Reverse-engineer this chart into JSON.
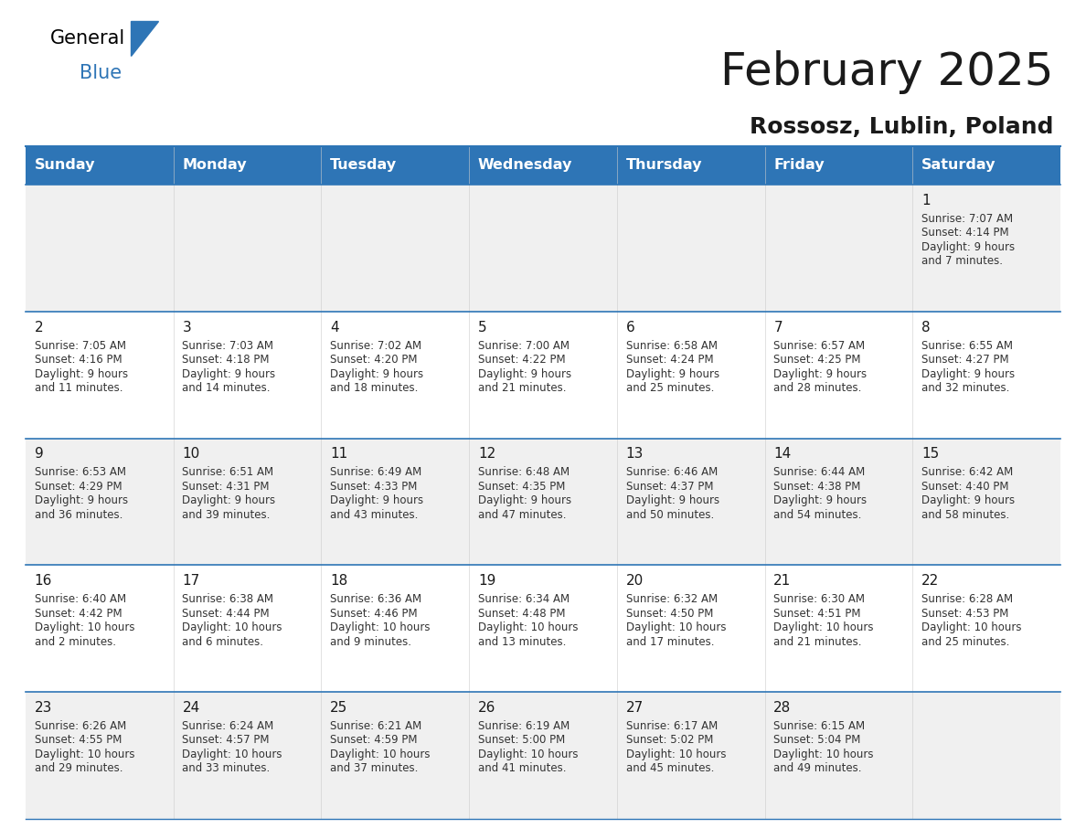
{
  "title": "February 2025",
  "subtitle": "Rossosz, Lublin, Poland",
  "header_bg": "#2E75B6",
  "header_text_color": "#FFFFFF",
  "cell_bg_odd": "#F0F0F0",
  "cell_bg_even": "#FFFFFF",
  "separator_color": "#2E75B6",
  "day_headers": [
    "Sunday",
    "Monday",
    "Tuesday",
    "Wednesday",
    "Thursday",
    "Friday",
    "Saturday"
  ],
  "days": [
    {
      "date": 1,
      "col": 6,
      "row": 0,
      "sunrise": "7:07 AM",
      "sunset": "4:14 PM",
      "daylight": "9 hours and 7 minutes."
    },
    {
      "date": 2,
      "col": 0,
      "row": 1,
      "sunrise": "7:05 AM",
      "sunset": "4:16 PM",
      "daylight": "9 hours and 11 minutes."
    },
    {
      "date": 3,
      "col": 1,
      "row": 1,
      "sunrise": "7:03 AM",
      "sunset": "4:18 PM",
      "daylight": "9 hours and 14 minutes."
    },
    {
      "date": 4,
      "col": 2,
      "row": 1,
      "sunrise": "7:02 AM",
      "sunset": "4:20 PM",
      "daylight": "9 hours and 18 minutes."
    },
    {
      "date": 5,
      "col": 3,
      "row": 1,
      "sunrise": "7:00 AM",
      "sunset": "4:22 PM",
      "daylight": "9 hours and 21 minutes."
    },
    {
      "date": 6,
      "col": 4,
      "row": 1,
      "sunrise": "6:58 AM",
      "sunset": "4:24 PM",
      "daylight": "9 hours and 25 minutes."
    },
    {
      "date": 7,
      "col": 5,
      "row": 1,
      "sunrise": "6:57 AM",
      "sunset": "4:25 PM",
      "daylight": "9 hours and 28 minutes."
    },
    {
      "date": 8,
      "col": 6,
      "row": 1,
      "sunrise": "6:55 AM",
      "sunset": "4:27 PM",
      "daylight": "9 hours and 32 minutes."
    },
    {
      "date": 9,
      "col": 0,
      "row": 2,
      "sunrise": "6:53 AM",
      "sunset": "4:29 PM",
      "daylight": "9 hours and 36 minutes."
    },
    {
      "date": 10,
      "col": 1,
      "row": 2,
      "sunrise": "6:51 AM",
      "sunset": "4:31 PM",
      "daylight": "9 hours and 39 minutes."
    },
    {
      "date": 11,
      "col": 2,
      "row": 2,
      "sunrise": "6:49 AM",
      "sunset": "4:33 PM",
      "daylight": "9 hours and 43 minutes."
    },
    {
      "date": 12,
      "col": 3,
      "row": 2,
      "sunrise": "6:48 AM",
      "sunset": "4:35 PM",
      "daylight": "9 hours and 47 minutes."
    },
    {
      "date": 13,
      "col": 4,
      "row": 2,
      "sunrise": "6:46 AM",
      "sunset": "4:37 PM",
      "daylight": "9 hours and 50 minutes."
    },
    {
      "date": 14,
      "col": 5,
      "row": 2,
      "sunrise": "6:44 AM",
      "sunset": "4:38 PM",
      "daylight": "9 hours and 54 minutes."
    },
    {
      "date": 15,
      "col": 6,
      "row": 2,
      "sunrise": "6:42 AM",
      "sunset": "4:40 PM",
      "daylight": "9 hours and 58 minutes."
    },
    {
      "date": 16,
      "col": 0,
      "row": 3,
      "sunrise": "6:40 AM",
      "sunset": "4:42 PM",
      "daylight": "10 hours and 2 minutes."
    },
    {
      "date": 17,
      "col": 1,
      "row": 3,
      "sunrise": "6:38 AM",
      "sunset": "4:44 PM",
      "daylight": "10 hours and 6 minutes."
    },
    {
      "date": 18,
      "col": 2,
      "row": 3,
      "sunrise": "6:36 AM",
      "sunset": "4:46 PM",
      "daylight": "10 hours and 9 minutes."
    },
    {
      "date": 19,
      "col": 3,
      "row": 3,
      "sunrise": "6:34 AM",
      "sunset": "4:48 PM",
      "daylight": "10 hours and 13 minutes."
    },
    {
      "date": 20,
      "col": 4,
      "row": 3,
      "sunrise": "6:32 AM",
      "sunset": "4:50 PM",
      "daylight": "10 hours and 17 minutes."
    },
    {
      "date": 21,
      "col": 5,
      "row": 3,
      "sunrise": "6:30 AM",
      "sunset": "4:51 PM",
      "daylight": "10 hours and 21 minutes."
    },
    {
      "date": 22,
      "col": 6,
      "row": 3,
      "sunrise": "6:28 AM",
      "sunset": "4:53 PM",
      "daylight": "10 hours and 25 minutes."
    },
    {
      "date": 23,
      "col": 0,
      "row": 4,
      "sunrise": "6:26 AM",
      "sunset": "4:55 PM",
      "daylight": "10 hours and 29 minutes."
    },
    {
      "date": 24,
      "col": 1,
      "row": 4,
      "sunrise": "6:24 AM",
      "sunset": "4:57 PM",
      "daylight": "10 hours and 33 minutes."
    },
    {
      "date": 25,
      "col": 2,
      "row": 4,
      "sunrise": "6:21 AM",
      "sunset": "4:59 PM",
      "daylight": "10 hours and 37 minutes."
    },
    {
      "date": 26,
      "col": 3,
      "row": 4,
      "sunrise": "6:19 AM",
      "sunset": "5:00 PM",
      "daylight": "10 hours and 41 minutes."
    },
    {
      "date": 27,
      "col": 4,
      "row": 4,
      "sunrise": "6:17 AM",
      "sunset": "5:02 PM",
      "daylight": "10 hours and 45 minutes."
    },
    {
      "date": 28,
      "col": 5,
      "row": 4,
      "sunrise": "6:15 AM",
      "sunset": "5:04 PM",
      "daylight": "10 hours and 49 minutes."
    }
  ],
  "num_rows": 5,
  "num_cols": 7,
  "logo_text_general": "General",
  "logo_text_blue": "Blue",
  "logo_triangle_color": "#2E75B6",
  "text_color_dark": "#1a1a1a",
  "date_text_color": "#1a1a1a",
  "info_text_color": "#333333"
}
